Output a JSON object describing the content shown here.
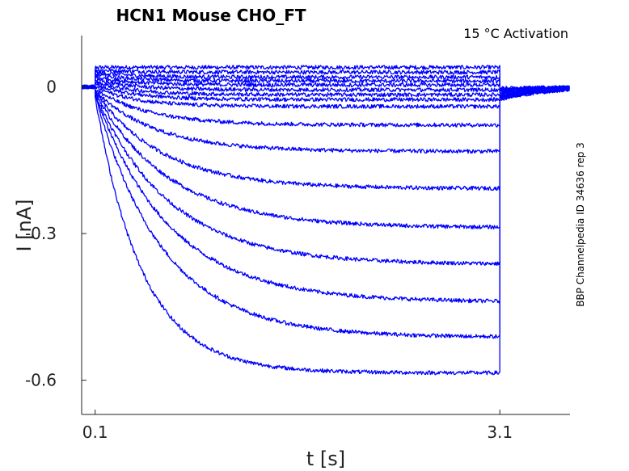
{
  "chart_data": {
    "type": "line",
    "title": "HCN1  Mouse  CHO_FT",
    "annotation": "15 °C  Activation",
    "side_label": "BBP Channelpedia ID 34636 rep 3",
    "xlabel": "t [s]",
    "ylabel": "I [nA]",
    "x_ticks": [
      0.1,
      3.1
    ],
    "x_tick_labels": [
      "0.1",
      "3.1"
    ],
    "y_ticks": [
      0,
      -0.3,
      -0.6
    ],
    "y_tick_labels": [
      "0",
      "-0.3",
      "-0.6"
    ],
    "xlim": [
      0.0,
      3.62
    ],
    "ylim": [
      -0.67,
      0.105
    ],
    "grid": false,
    "line_color": "#0000ff",
    "pulse": {
      "start": 0.1,
      "end": 3.1,
      "tail_end": 3.62
    },
    "series": [
      {
        "start_offset": 0.04,
        "steady": 0.04,
        "tau": 0.3
      },
      {
        "start_offset": 0.035,
        "steady": 0.03,
        "tau": 0.3
      },
      {
        "start_offset": 0.03,
        "steady": 0.02,
        "tau": 0.3
      },
      {
        "start_offset": 0.025,
        "steady": 0.012,
        "tau": 0.3
      },
      {
        "start_offset": 0.02,
        "steady": 0.004,
        "tau": 0.3
      },
      {
        "start_offset": 0.015,
        "steady": -0.006,
        "tau": 0.3
      },
      {
        "start_offset": 0.01,
        "steady": -0.016,
        "tau": 0.3
      },
      {
        "start_offset": 0.005,
        "steady": -0.026,
        "tau": 0.3
      },
      {
        "start_offset": 0.0,
        "steady": -0.04,
        "tau": 0.3
      },
      {
        "start_offset": -0.005,
        "steady": -0.078,
        "tau": 0.4
      },
      {
        "start_offset": -0.008,
        "steady": -0.132,
        "tau": 0.45
      },
      {
        "start_offset": -0.01,
        "steady": -0.208,
        "tau": 0.5
      },
      {
        "start_offset": -0.012,
        "steady": -0.288,
        "tau": 0.55
      },
      {
        "start_offset": -0.014,
        "steady": -0.363,
        "tau": 0.55
      },
      {
        "start_offset": -0.016,
        "steady": -0.44,
        "tau": 0.55
      },
      {
        "start_offset": -0.018,
        "steady": -0.512,
        "tau": 0.5
      },
      {
        "start_offset": -0.02,
        "steady": -0.585,
        "tau": 0.35
      }
    ]
  }
}
